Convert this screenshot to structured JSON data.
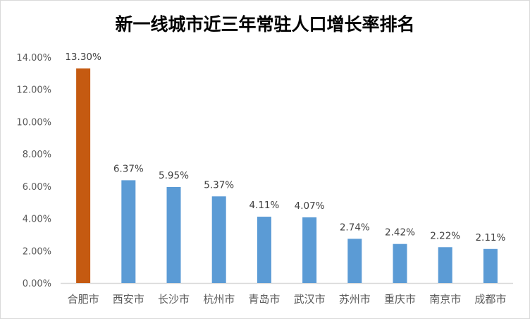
{
  "chart_data": {
    "type": "bar",
    "title": "新一线城市近三年常驻人口增长率排名",
    "categories": [
      "合肥市",
      "西安市",
      "长沙市",
      "杭州市",
      "青岛市",
      "武汉市",
      "苏州市",
      "重庆市",
      "南京市",
      "成都市"
    ],
    "values": [
      13.3,
      6.37,
      5.95,
      5.37,
      4.11,
      4.07,
      2.74,
      2.42,
      2.22,
      2.11
    ],
    "data_labels": [
      "13.30%",
      "6.37%",
      "5.95%",
      "5.37%",
      "4.11%",
      "4.07%",
      "2.74%",
      "2.42%",
      "2.22%",
      "2.11%"
    ],
    "y_ticks": [
      "0.00%",
      "2.00%",
      "4.00%",
      "6.00%",
      "8.00%",
      "10.00%",
      "12.00%",
      "14.00%"
    ],
    "ylim": [
      0,
      14
    ],
    "xlabel": "",
    "ylabel": "",
    "grid": false,
    "legend": "none",
    "colors": {
      "highlight": "#C55A11",
      "default": "#5B9BD5"
    }
  }
}
